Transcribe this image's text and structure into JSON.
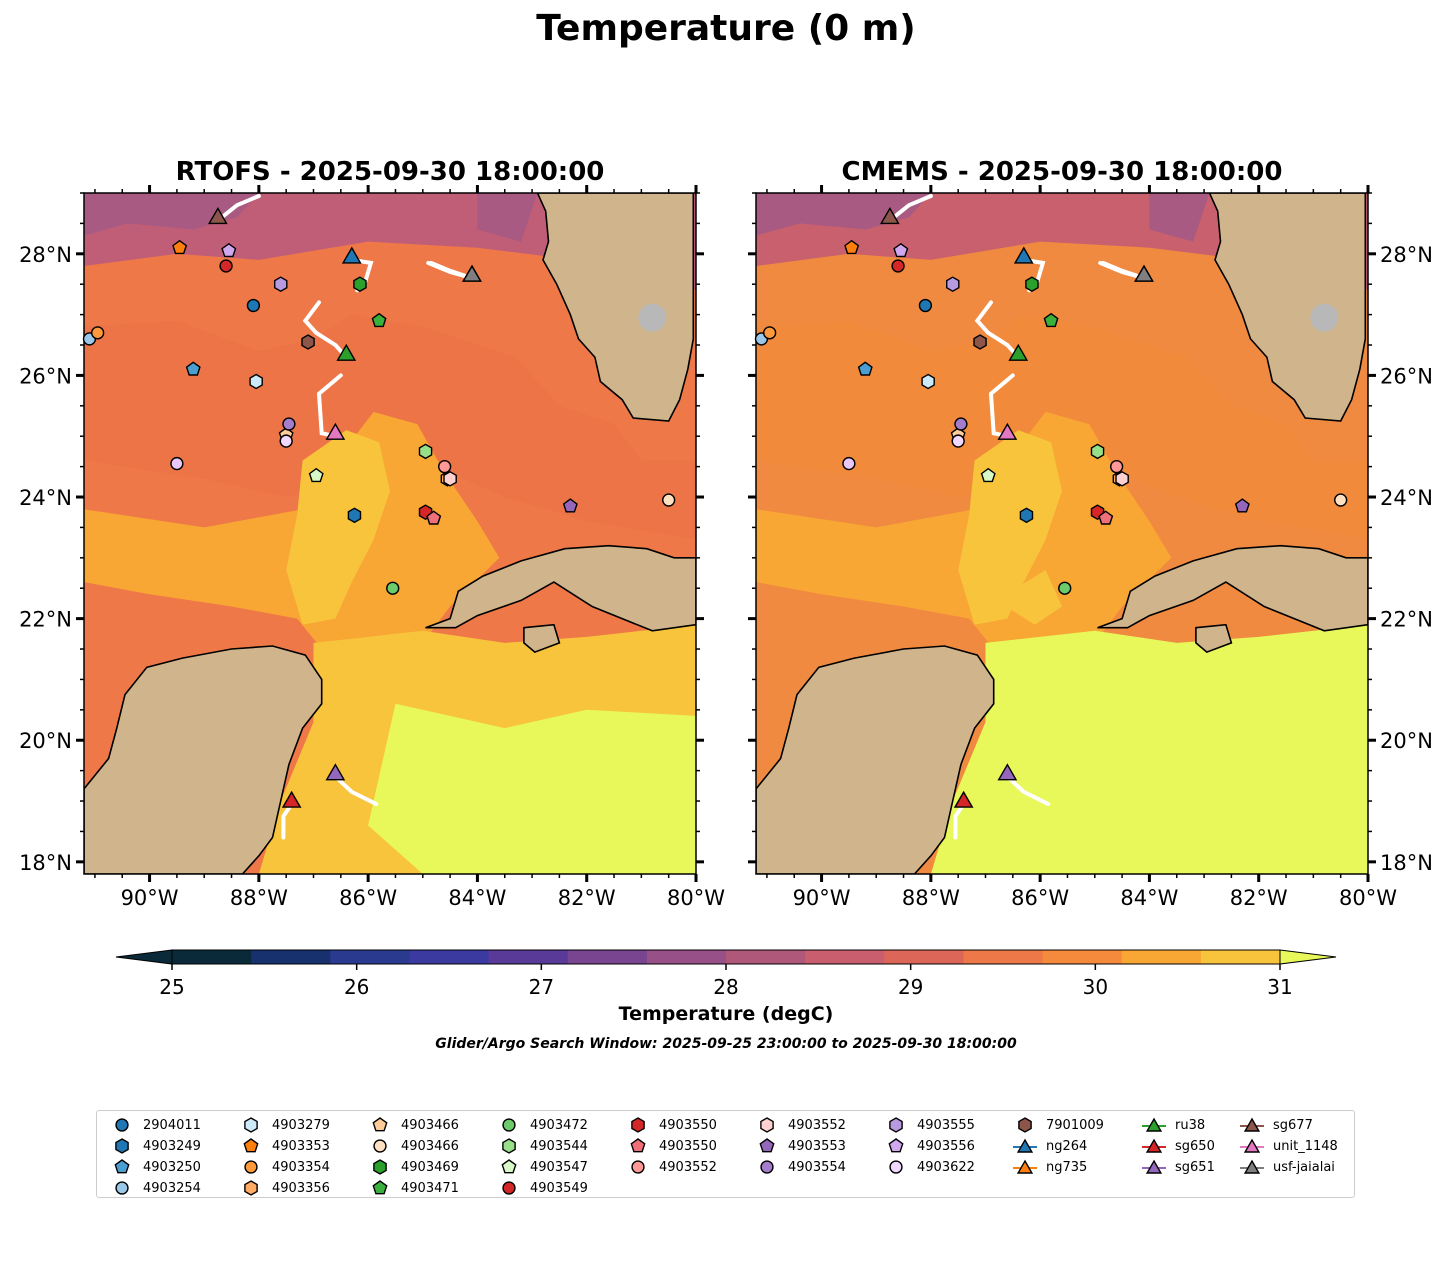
{
  "title": "Temperature (0 m)",
  "panels": [
    {
      "title": "RTOFS - 2025-09-30 18:00:00",
      "model": "RTOFS"
    },
    {
      "title": "CMEMS - 2025-09-30 18:00:00",
      "model": "CMEMS"
    }
  ],
  "colorbar": {
    "label": "Temperature (degC)",
    "ticks": [
      "25",
      "26",
      "27",
      "28",
      "29",
      "30",
      "31"
    ],
    "min": 25,
    "max": 31,
    "step": 0.5,
    "colors": [
      "#0a2a3a",
      "#17306e",
      "#2a3a8f",
      "#3a3aa0",
      "#5a3a98",
      "#7a4590",
      "#985088",
      "#b0587a",
      "#c85e6e",
      "#dc6658",
      "#ee7848",
      "#f58a3c",
      "#f8a634",
      "#f8c43c"
    ],
    "under_color": "#0a2a3a",
    "over_color": "#e8f85a"
  },
  "search_window": "Glider/Argo Search Window: 2025-09-25 23:00:00 to 2025-09-30 18:00:00",
  "chart_data": {
    "type": "map-contour",
    "variable": "Temperature",
    "depth_m": 0,
    "units": "degC",
    "lon_range": [
      -91.2,
      -80.0
    ],
    "lat_range": [
      17.8,
      29.0
    ],
    "xticks": [
      "90°W",
      "88°W",
      "86°W",
      "84°W",
      "82°W",
      "80°W"
    ],
    "xtick_values": [
      -90,
      -88,
      -86,
      -84,
      -82,
      -80
    ],
    "yticks": [
      "18°N",
      "20°N",
      "22°N",
      "24°N",
      "26°N",
      "28°N"
    ],
    "ytick_values": [
      18,
      20,
      22,
      24,
      26,
      28
    ],
    "observations": [
      {
        "id": "2904011",
        "marker": "circle",
        "color": "#1f77b4",
        "lon": -88.1,
        "lat": 27.15
      },
      {
        "id": "4903249",
        "marker": "hexagon",
        "color": "#1f77b4",
        "lon": -86.25,
        "lat": 23.7
      },
      {
        "id": "4903250",
        "marker": "pentagon",
        "color": "#4a9ed0",
        "lon": -89.2,
        "lat": 26.1
      },
      {
        "id": "4903254",
        "marker": "circle",
        "color": "#9ac8e8",
        "lon": -91.1,
        "lat": 26.6
      },
      {
        "id": "4903279",
        "marker": "hexagon",
        "color": "#cdeafa",
        "lon": -88.05,
        "lat": 25.9
      },
      {
        "id": "4903353",
        "marker": "pentagon",
        "color": "#ff7f0e",
        "lon": -89.45,
        "lat": 28.1
      },
      {
        "id": "4903354",
        "marker": "circle",
        "color": "#ff9a3c",
        "lon": -90.95,
        "lat": 26.7
      },
      {
        "id": "4903356",
        "marker": "hexagon",
        "color": "#ffab63",
        "lon": -84.55,
        "lat": 24.3
      },
      {
        "id": "4903466",
        "marker": "pentagon",
        "color": "#ffcc99",
        "lon": -87.5,
        "lat": 25.02
      },
      {
        "id": "4903466b",
        "label": "4903466",
        "marker": "circle",
        "color": "#ffe0c0",
        "lon": -80.5,
        "lat": 23.95
      },
      {
        "id": "4903469",
        "marker": "hexagon",
        "color": "#2ca02c",
        "lon": -86.15,
        "lat": 27.5
      },
      {
        "id": "4903471",
        "marker": "pentagon",
        "color": "#3cb03c",
        "lon": -85.8,
        "lat": 26.9
      },
      {
        "id": "4903472",
        "marker": "circle",
        "color": "#6ccc6c",
        "lon": -85.55,
        "lat": 22.5
      },
      {
        "id": "4903544",
        "marker": "hexagon",
        "color": "#98df8a",
        "lon": -84.95,
        "lat": 24.75
      },
      {
        "id": "4903547",
        "marker": "pentagon",
        "color": "#d8f8c8",
        "lon": -86.95,
        "lat": 24.35
      },
      {
        "id": "4903549",
        "marker": "circle",
        "color": "#d62728",
        "lon": -88.6,
        "lat": 27.8
      },
      {
        "id": "4903550",
        "marker": "hexagon",
        "color": "#d62728",
        "lon": -84.95,
        "lat": 23.75
      },
      {
        "id": "4903550b",
        "label": "4903550",
        "marker": "pentagon",
        "color": "#f0707a",
        "lon": -84.8,
        "lat": 23.65
      },
      {
        "id": "4903552",
        "marker": "circle",
        "color": "#ff9896",
        "lon": -84.6,
        "lat": 24.5
      },
      {
        "id": "4903552b",
        "label": "4903552",
        "marker": "hexagon",
        "color": "#ffd0d0",
        "lon": -84.5,
        "lat": 24.3
      },
      {
        "id": "4903553",
        "marker": "pentagon",
        "color": "#9467bd",
        "lon": -82.3,
        "lat": 23.85
      },
      {
        "id": "4903554",
        "marker": "circle",
        "color": "#a57dcd",
        "lon": -87.45,
        "lat": 25.2
      },
      {
        "id": "4903555",
        "marker": "hexagon",
        "color": "#b89ae0",
        "lon": -87.6,
        "lat": 27.5
      },
      {
        "id": "4903556",
        "marker": "pentagon",
        "color": "#d0a8f0",
        "lon": -88.55,
        "lat": 28.05
      },
      {
        "id": "4903622",
        "marker": "circle",
        "color": "#e8c8f8",
        "lon": -89.5,
        "lat": 24.55
      },
      {
        "id": "4903622b",
        "label": "4903622",
        "marker": "circle",
        "color": "#f0d8ff",
        "lon": -87.5,
        "lat": 24.92
      },
      {
        "id": "7901009",
        "marker": "hexagon",
        "color": "#8c564b",
        "lon": -87.1,
        "lat": 26.55
      }
    ],
    "gliders": [
      {
        "id": "ru38",
        "color": "#2ca02c",
        "lon": -86.4,
        "lat": 26.3,
        "track": [
          [
            -86.4,
            26.3
          ],
          [
            -86.6,
            26.5
          ],
          [
            -86.95,
            26.7
          ],
          [
            -87.15,
            26.9
          ],
          [
            -86.9,
            27.2
          ]
        ]
      },
      {
        "id": "ng264",
        "color": "#1f77b4",
        "lon": -86.3,
        "lat": 27.9,
        "track": [
          [
            -86.3,
            27.9
          ],
          [
            -85.95,
            27.85
          ],
          [
            -86.05,
            27.55
          ],
          [
            -86.2,
            27.4
          ]
        ]
      },
      {
        "id": "ng735",
        "color": "#ff7f0e",
        "lon": -84.1,
        "lat": 27.6,
        "track": [
          [
            -84.1,
            27.6
          ],
          [
            -84.5,
            27.72
          ],
          [
            -84.85,
            27.85
          ]
        ]
      },
      {
        "id": "sg650",
        "color": "#d62728",
        "lon": -87.4,
        "lat": 18.95,
        "track": [
          [
            -87.4,
            18.95
          ],
          [
            -87.55,
            18.75
          ],
          [
            -87.55,
            18.4
          ]
        ]
      },
      {
        "id": "sg651",
        "color": "#9467bd",
        "lon": -86.6,
        "lat": 19.4,
        "track": [
          [
            -86.6,
            19.4
          ],
          [
            -86.3,
            19.15
          ],
          [
            -85.85,
            18.95
          ]
        ]
      },
      {
        "id": "sg677",
        "color": "#8c564b",
        "lon": -88.75,
        "lat": 28.55,
        "track": [
          [
            -88.75,
            28.55
          ],
          [
            -88.4,
            28.8
          ],
          [
            -88.0,
            28.95
          ]
        ]
      },
      {
        "id": "unit_1148",
        "color": "#e377c2",
        "lon": -86.6,
        "lat": 25.0,
        "track": [
          [
            -86.6,
            25.0
          ],
          [
            -86.85,
            25.05
          ],
          [
            -86.9,
            25.7
          ],
          [
            -86.5,
            26.0
          ]
        ]
      },
      {
        "id": "usf-jaialai",
        "color": "#7f7f7f",
        "lon": -84.1,
        "lat": 27.6,
        "track": [
          [
            -84.1,
            27.6
          ],
          [
            -84.5,
            27.7
          ],
          [
            -84.9,
            27.85
          ]
        ]
      }
    ]
  },
  "legend": {
    "columns": [
      [
        {
          "label": "2904011",
          "marker": "circle",
          "color": "#1f77b4"
        },
        {
          "label": "4903249",
          "marker": "hexagon",
          "color": "#1f77b4"
        },
        {
          "label": "4903250",
          "marker": "pentagon",
          "color": "#4a9ed0"
        },
        {
          "label": "4903254",
          "marker": "circle",
          "color": "#9ac8e8"
        }
      ],
      [
        {
          "label": "4903279",
          "marker": "hexagon",
          "color": "#cdeafa"
        },
        {
          "label": "4903353",
          "marker": "pentagon",
          "color": "#ff7f0e"
        },
        {
          "label": "4903354",
          "marker": "circle",
          "color": "#ff9a3c"
        },
        {
          "label": "4903356",
          "marker": "hexagon",
          "color": "#ffab63"
        }
      ],
      [
        {
          "label": "4903466",
          "marker": "pentagon",
          "color": "#ffcc99"
        },
        {
          "label": "4903466",
          "marker": "circle",
          "color": "#ffe0c0"
        },
        {
          "label": "4903469",
          "marker": "hexagon",
          "color": "#2ca02c"
        },
        {
          "label": "4903471",
          "marker": "pentagon",
          "color": "#3cb03c"
        }
      ],
      [
        {
          "label": "4903472",
          "marker": "circle",
          "color": "#6ccc6c"
        },
        {
          "label": "4903544",
          "marker": "hexagon",
          "color": "#98df8a"
        },
        {
          "label": "4903547",
          "marker": "pentagon",
          "color": "#d8f8c8"
        },
        {
          "label": "4903549",
          "marker": "circle",
          "color": "#d62728"
        }
      ],
      [
        {
          "label": "4903550",
          "marker": "hexagon",
          "color": "#d62728"
        },
        {
          "label": "4903550",
          "marker": "pentagon",
          "color": "#f0707a"
        },
        {
          "label": "4903552",
          "marker": "circle",
          "color": "#ff9896"
        }
      ],
      [
        {
          "label": "4903552",
          "marker": "hexagon",
          "color": "#ffd0d0"
        },
        {
          "label": "4903553",
          "marker": "pentagon",
          "color": "#9467bd"
        },
        {
          "label": "4903554",
          "marker": "circle",
          "color": "#a57dcd"
        }
      ],
      [
        {
          "label": "4903555",
          "marker": "hexagon",
          "color": "#b89ae0"
        },
        {
          "label": "4903556",
          "marker": "pentagon",
          "color": "#d0a8f0"
        },
        {
          "label": "4903622",
          "marker": "circle",
          "color": "#f0d8ff"
        }
      ],
      [
        {
          "label": "7901009",
          "marker": "hexagon",
          "color": "#8c564b"
        },
        {
          "label": "ng264",
          "marker": "triangle-line",
          "color": "#1f77b4"
        },
        {
          "label": "ng735",
          "marker": "triangle-line",
          "color": "#ff7f0e"
        }
      ],
      [
        {
          "label": "ru38",
          "marker": "triangle-line",
          "color": "#2ca02c"
        },
        {
          "label": "sg650",
          "marker": "triangle-line",
          "color": "#d62728"
        },
        {
          "label": "sg651",
          "marker": "triangle-line",
          "color": "#9467bd"
        }
      ],
      [
        {
          "label": "sg677",
          "marker": "triangle-line",
          "color": "#8c564b"
        },
        {
          "label": "unit_1148",
          "marker": "triangle-line",
          "color": "#e377c2"
        },
        {
          "label": "usf-jaialai",
          "marker": "triangle-line",
          "color": "#7f7f7f"
        }
      ]
    ]
  }
}
